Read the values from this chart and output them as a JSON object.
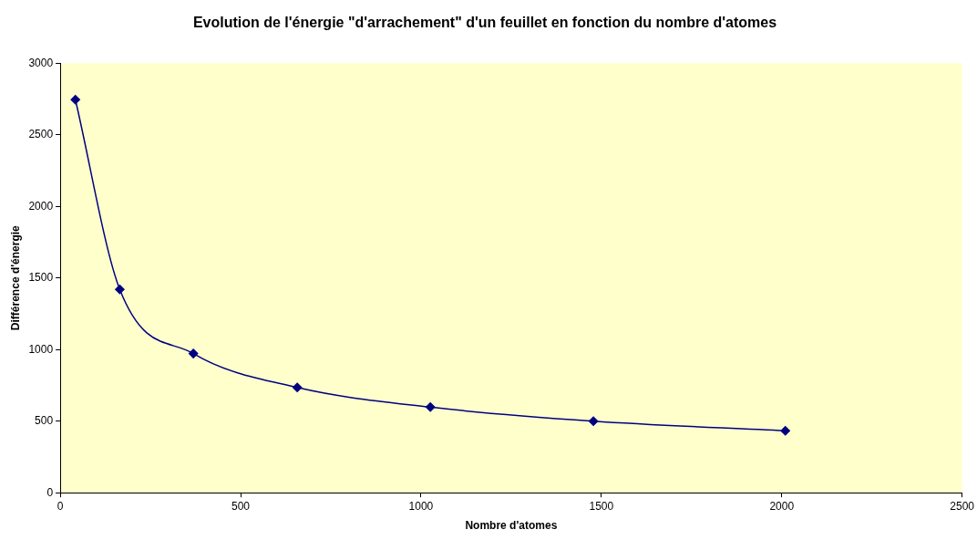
{
  "chart_data": {
    "type": "line",
    "title": "Evolution de l'énergie \"d'arrachement\" d'un feuillet en fonction du nombre d'atomes",
    "xlabel": "Nombre d'atomes",
    "ylabel": "Différence d'énergie",
    "x": [
      42,
      165,
      369,
      657,
      1026,
      1478,
      2010
    ],
    "series": [
      {
        "color": "#000080",
        "values": [
          2745,
          1420,
          972,
          735,
          598,
          500,
          433
        ]
      }
    ],
    "xlim": [
      0,
      2500
    ],
    "xticks": [
      0,
      500,
      1000,
      1500,
      2000,
      2500
    ],
    "ylim": [
      0,
      3000
    ],
    "yticks": [
      0,
      500,
      1000,
      1500,
      2000,
      2500,
      3000
    ],
    "grid": false,
    "legend": false,
    "marker": "diamond",
    "line_style": "solid"
  }
}
